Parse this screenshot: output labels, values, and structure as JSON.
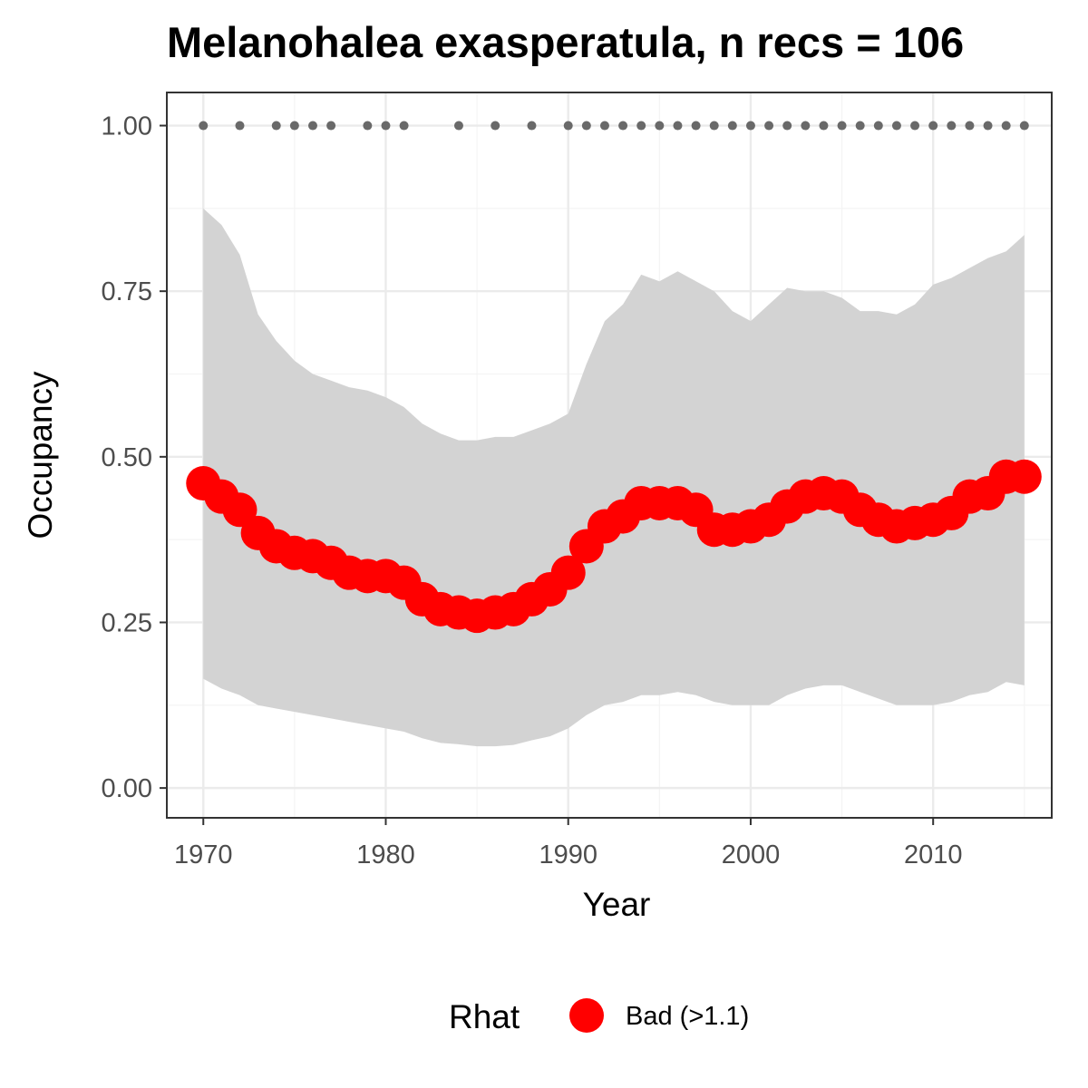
{
  "chart_data": {
    "type": "line",
    "title": "Melanohalea exasperatula, n recs = 106",
    "xlabel": "Year",
    "ylabel": "Occupancy",
    "xlim": [
      1968,
      2016.5
    ],
    "ylim": [
      -0.045,
      1.05
    ],
    "x_ticks": [
      1970,
      1980,
      1990,
      2000,
      2010
    ],
    "x_tick_labels": [
      "1970",
      "1980",
      "1990",
      "2000",
      "2010"
    ],
    "y_ticks": [
      0,
      0.25,
      0.5,
      0.75,
      1
    ],
    "y_tick_labels": [
      "0.00",
      "0.25",
      "0.50",
      "0.75",
      "1.00"
    ],
    "grid": true,
    "background": "#ffffff",
    "colors": {
      "ribbon": "#d3d3d3",
      "estimate": "#ff0000",
      "record_points": "#696969",
      "grid_major": "#ebebeb",
      "grid_minor": "#f4f4f4",
      "panel_border": "#333333"
    },
    "series": [
      {
        "role": "mean_occupancy",
        "x": [
          1970,
          1971,
          1972,
          1973,
          1974,
          1975,
          1976,
          1977,
          1978,
          1979,
          1980,
          1981,
          1982,
          1983,
          1984,
          1985,
          1986,
          1987,
          1988,
          1989,
          1990,
          1991,
          1992,
          1993,
          1994,
          1995,
          1996,
          1997,
          1998,
          1999,
          2000,
          2001,
          2002,
          2003,
          2004,
          2005,
          2006,
          2007,
          2008,
          2009,
          2010,
          2011,
          2012,
          2013,
          2014,
          2015
        ],
        "y": [
          0.46,
          0.44,
          0.42,
          0.385,
          0.365,
          0.355,
          0.35,
          0.34,
          0.325,
          0.32,
          0.32,
          0.31,
          0.285,
          0.27,
          0.265,
          0.26,
          0.265,
          0.27,
          0.285,
          0.3,
          0.325,
          0.365,
          0.395,
          0.41,
          0.43,
          0.43,
          0.43,
          0.42,
          0.39,
          0.39,
          0.395,
          0.405,
          0.425,
          0.44,
          0.445,
          0.44,
          0.42,
          0.405,
          0.395,
          0.4,
          0.405,
          0.415,
          0.44,
          0.445,
          0.47,
          0.47
        ]
      },
      {
        "role": "upper_ci",
        "x": [
          1970,
          1971,
          1972,
          1973,
          1974,
          1975,
          1976,
          1977,
          1978,
          1979,
          1980,
          1981,
          1982,
          1983,
          1984,
          1985,
          1986,
          1987,
          1988,
          1989,
          1990,
          1991,
          1992,
          1993,
          1994,
          1995,
          1996,
          1997,
          1998,
          1999,
          2000,
          2001,
          2002,
          2003,
          2004,
          2005,
          2006,
          2007,
          2008,
          2009,
          2010,
          2011,
          2012,
          2013,
          2014,
          2015
        ],
        "y": [
          0.875,
          0.85,
          0.805,
          0.715,
          0.675,
          0.645,
          0.625,
          0.615,
          0.605,
          0.6,
          0.59,
          0.575,
          0.55,
          0.535,
          0.525,
          0.525,
          0.53,
          0.53,
          0.54,
          0.55,
          0.565,
          0.64,
          0.705,
          0.73,
          0.775,
          0.765,
          0.78,
          0.765,
          0.75,
          0.72,
          0.705,
          0.73,
          0.755,
          0.75,
          0.75,
          0.74,
          0.72,
          0.72,
          0.715,
          0.73,
          0.76,
          0.77,
          0.785,
          0.8,
          0.81,
          0.835
        ]
      },
      {
        "role": "lower_ci",
        "x": [
          1970,
          1971,
          1972,
          1973,
          1974,
          1975,
          1976,
          1977,
          1978,
          1979,
          1980,
          1981,
          1982,
          1983,
          1984,
          1985,
          1986,
          1987,
          1988,
          1989,
          1990,
          1991,
          1992,
          1993,
          1994,
          1995,
          1996,
          1997,
          1998,
          1999,
          2000,
          2001,
          2002,
          2003,
          2004,
          2005,
          2006,
          2007,
          2008,
          2009,
          2010,
          2011,
          2012,
          2013,
          2014,
          2015
        ],
        "y": [
          0.165,
          0.15,
          0.14,
          0.125,
          0.12,
          0.115,
          0.11,
          0.105,
          0.1,
          0.095,
          0.09,
          0.085,
          0.075,
          0.068,
          0.066,
          0.063,
          0.063,
          0.065,
          0.072,
          0.078,
          0.09,
          0.11,
          0.125,
          0.13,
          0.14,
          0.14,
          0.145,
          0.14,
          0.13,
          0.125,
          0.125,
          0.125,
          0.14,
          0.15,
          0.155,
          0.155,
          0.145,
          0.135,
          0.125,
          0.125,
          0.125,
          0.13,
          0.14,
          0.145,
          0.16,
          0.155
        ]
      },
      {
        "role": "record_years",
        "x": [
          1970,
          1972,
          1974,
          1975,
          1976,
          1977,
          1979,
          1980,
          1981,
          1984,
          1986,
          1988,
          1990,
          1991,
          1992,
          1993,
          1994,
          1995,
          1996,
          1997,
          1998,
          1999,
          2000,
          2001,
          2002,
          2003,
          2004,
          2005,
          2006,
          2007,
          2008,
          2009,
          2010,
          2011,
          2012,
          2013,
          2014,
          2015
        ],
        "y": [
          1,
          1,
          1,
          1,
          1,
          1,
          1,
          1,
          1,
          1,
          1,
          1,
          1,
          1,
          1,
          1,
          1,
          1,
          1,
          1,
          1,
          1,
          1,
          1,
          1,
          1,
          1,
          1,
          1,
          1,
          1,
          1,
          1,
          1,
          1,
          1,
          1,
          1
        ]
      }
    ],
    "legend": {
      "position": "bottom",
      "title": "Rhat",
      "entries": [
        {
          "label": "Bad (>1.1)",
          "color": "#ff0000"
        }
      ]
    }
  }
}
